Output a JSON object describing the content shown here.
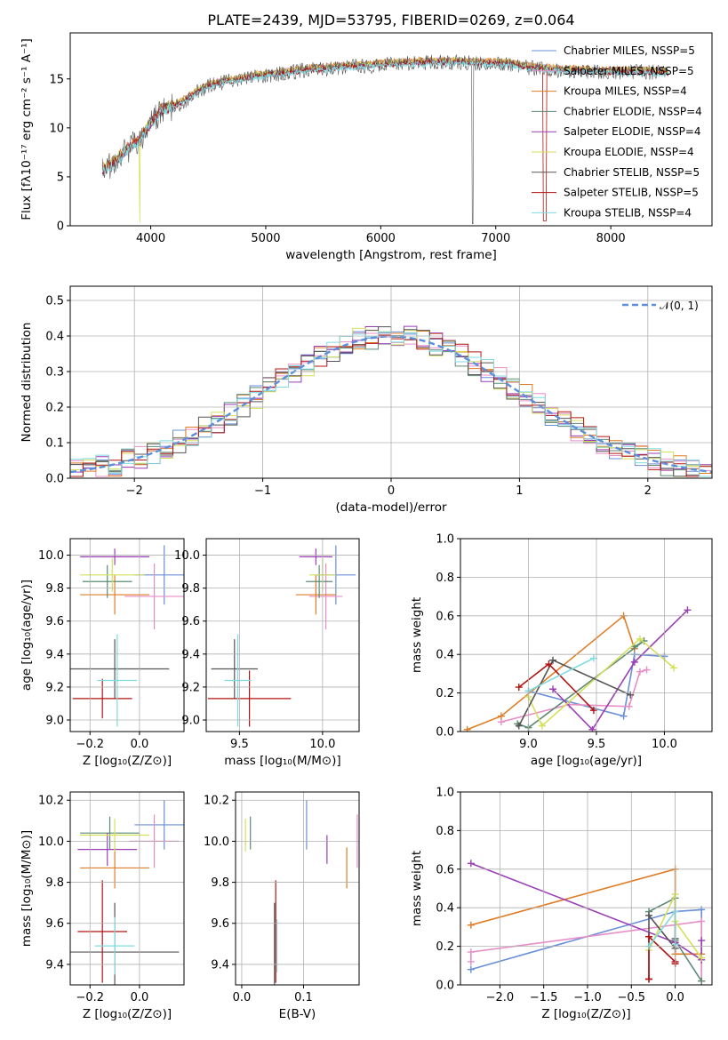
{
  "page_title": "PLATE=2439, MJD=53795, FIBERID=0269, z=0.064",
  "colors": {
    "series": [
      "#6a8fd9",
      "#e88ec6",
      "#e07c25",
      "#5e8a74",
      "#9b3fb5",
      "#d4e05a",
      "#555555",
      "#b01414",
      "#7fdbe0"
    ]
  },
  "chart_data": [
    {
      "id": "spectrum",
      "type": "line",
      "xlabel": "wavelength [Angstrom, rest frame]",
      "ylabel": "Flux [fλ10⁻¹⁷ erg cm⁻² s⁻¹ A⁻¹]",
      "xlim": [
        3300,
        8880
      ],
      "ylim": [
        0,
        19.7
      ],
      "xticks": [
        "4000",
        "5000",
        "6000",
        "7000",
        "8000"
      ],
      "yticks": [
        "0",
        "5",
        "10",
        "15"
      ],
      "grid": false,
      "legend": "top-right",
      "x": [
        3580,
        3700,
        3800,
        3900,
        4000,
        4100,
        4200,
        4300,
        4500,
        4700,
        4900,
        5100,
        5300,
        5500,
        5700,
        5900,
        6100,
        6300,
        6500,
        6700,
        6900,
        7100,
        7300,
        7500,
        7700,
        7900,
        8100,
        8300,
        8500
      ],
      "series": [
        {
          "name": "Chabrier MILES, NSSP=5",
          "values": [
            5.8,
            6.8,
            8.0,
            8.9,
            10.6,
            12.0,
            12.3,
            13.0,
            14.5,
            15.0,
            15.4,
            15.7,
            16.0,
            16.2,
            16.4,
            16.5,
            16.7,
            16.8,
            16.9,
            16.9,
            16.8,
            16.7,
            16.3,
            16.1,
            16.0,
            15.9,
            15.9,
            15.9,
            15.8
          ]
        },
        {
          "name": "Salpeter MILES, NSSP=5",
          "values": [
            5.8,
            6.7,
            7.9,
            8.9,
            10.5,
            12.0,
            12.3,
            13.0,
            14.5,
            15.0,
            15.4,
            15.7,
            16.0,
            16.2,
            16.4,
            16.5,
            16.7,
            16.8,
            16.9,
            16.9,
            16.8,
            16.7,
            16.3,
            16.1,
            16.0,
            15.9,
            15.9,
            15.9,
            15.8
          ]
        },
        {
          "name": "Kroupa MILES, NSSP=4",
          "values": [
            5.9,
            6.8,
            8.1,
            9.0,
            10.6,
            12.1,
            12.4,
            13.1,
            14.6,
            15.1,
            15.5,
            15.8,
            16.1,
            16.3,
            16.5,
            16.6,
            16.8,
            16.9,
            17.0,
            17.0,
            16.9,
            16.8,
            16.4,
            16.2,
            16.1,
            16.0,
            16.0,
            16.0,
            15.9
          ]
        },
        {
          "name": "Chabrier ELODIE, NSSP=4",
          "values": [
            5.7,
            6.7,
            7.9,
            8.8,
            10.5,
            11.9,
            12.2,
            12.9,
            14.4,
            14.9,
            15.3,
            15.6,
            15.9,
            16.1,
            16.3,
            16.4,
            16.6,
            16.7,
            16.8,
            16.8,
            16.7,
            16.6,
            16.2,
            16.0,
            15.9,
            15.8,
            15.8,
            15.8,
            15.7
          ]
        },
        {
          "name": "Salpeter ELODIE, NSSP=4",
          "values": [
            5.7,
            6.6,
            7.9,
            8.8,
            10.4,
            11.9,
            12.2,
            12.9,
            14.4,
            14.9,
            15.3,
            15.6,
            15.9,
            16.1,
            16.3,
            16.4,
            16.6,
            16.7,
            16.8,
            16.8,
            16.7,
            16.6,
            16.2,
            16.0,
            15.9,
            15.8,
            15.8,
            15.8,
            15.7
          ]
        },
        {
          "name": "Kroupa ELODIE, NSSP=4",
          "values": [
            5.8,
            6.8,
            8.0,
            8.9,
            10.6,
            12.0,
            12.3,
            13.0,
            14.5,
            15.0,
            15.4,
            15.7,
            16.0,
            16.2,
            16.4,
            16.5,
            16.7,
            16.8,
            16.9,
            16.9,
            16.8,
            16.7,
            16.3,
            16.1,
            16.0,
            15.9,
            15.9,
            15.9,
            15.8
          ]
        },
        {
          "name": "Chabrier STELIB, NSSP=5",
          "values": [
            5.6,
            6.6,
            7.8,
            8.7,
            10.4,
            11.8,
            12.1,
            12.8,
            14.3,
            14.8,
            15.2,
            15.5,
            15.8,
            16.0,
            16.2,
            16.3,
            16.5,
            16.6,
            16.7,
            16.7,
            16.6,
            16.5,
            16.1,
            15.9,
            15.8,
            15.7,
            15.7,
            15.7,
            15.6
          ]
        },
        {
          "name": "Salpeter STELIB, NSSP=5",
          "values": [
            5.6,
            6.6,
            7.8,
            8.7,
            10.4,
            11.8,
            12.1,
            12.8,
            14.3,
            14.8,
            15.2,
            15.5,
            15.8,
            16.0,
            16.2,
            16.3,
            16.5,
            16.6,
            16.7,
            16.7,
            16.6,
            16.5,
            16.1,
            15.9,
            15.8,
            15.7,
            15.7,
            15.7,
            15.6
          ]
        },
        {
          "name": "Kroupa STELIB, NSSP=4",
          "values": [
            5.5,
            6.5,
            7.7,
            8.6,
            10.3,
            11.7,
            12.0,
            12.7,
            14.2,
            14.7,
            15.1,
            15.4,
            15.7,
            15.9,
            16.1,
            16.2,
            16.4,
            16.5,
            16.6,
            16.6,
            16.5,
            16.4,
            16.0,
            15.8,
            15.7,
            15.6,
            15.6,
            15.6,
            15.5
          ]
        }
      ]
    },
    {
      "id": "residuals",
      "type": "histogram",
      "xlabel": "(data-model)/error",
      "ylabel": "Normed distribution",
      "xlim": [
        -2.5,
        2.5
      ],
      "ylim": [
        0,
        0.54
      ],
      "xticks": [
        "−2",
        "−1",
        "0",
        "1",
        "2"
      ],
      "yticks": [
        "0.0",
        "0.1",
        "0.2",
        "0.3",
        "0.4",
        "0.5"
      ],
      "grid": true,
      "legend": "top-right",
      "gaussian_label": "𝒩(0, 1)",
      "bin_edges_range": [
        -2.5,
        2.5
      ],
      "n_bins": 50,
      "shape": "normal"
    },
    {
      "id": "age_vs_Z",
      "type": "errorbar",
      "xlabel": "Z [log₁₀(Z/Z⊙)]",
      "ylabel": "age  [log₁₀(age/yr)]",
      "xlim": [
        -0.28,
        0.18
      ],
      "ylim": [
        8.93,
        10.1
      ],
      "xticks": [
        "−0.2",
        "0.0"
      ],
      "yticks": [
        "9.0",
        "9.2",
        "9.4",
        "9.6",
        "9.8",
        "10.0"
      ],
      "grid": true,
      "points": [
        {
          "x": 0.1,
          "y": 9.88,
          "xerr": 0.12,
          "yerr": 0.18
        },
        {
          "x": 0.06,
          "y": 9.75,
          "xerr": 0.12,
          "yerr": 0.2
        },
        {
          "x": -0.1,
          "y": 9.76,
          "xerr": 0.14,
          "yerr": 0.12
        },
        {
          "x": -0.13,
          "y": 9.84,
          "xerr": 0.1,
          "yerr": 0.1
        },
        {
          "x": -0.1,
          "y": 9.99,
          "xerr": 0.14,
          "yerr": 0.05
        },
        {
          "x": -0.11,
          "y": 9.88,
          "xerr": 0.13,
          "yerr": 0.1
        },
        {
          "x": -0.1,
          "y": 9.31,
          "xerr": 0.22,
          "yerr": 0.18
        },
        {
          "x": -0.15,
          "y": 9.13,
          "xerr": 0.12,
          "yerr": 0.12
        },
        {
          "x": -0.09,
          "y": 9.24,
          "xerr": 0.08,
          "yerr": 0.28
        }
      ]
    },
    {
      "id": "age_vs_mass",
      "type": "errorbar",
      "xlabel": "mass [log₁₀(M/M⊙)]",
      "ylabel": "",
      "xlim": [
        9.3,
        10.22
      ],
      "ylim": [
        8.93,
        10.1
      ],
      "xticks": [
        "9.5",
        "10.0"
      ],
      "yticks": [
        "9.0",
        "9.2",
        "9.4",
        "9.6",
        "9.8",
        "10.0"
      ],
      "grid": true,
      "points": [
        {
          "x": 10.08,
          "y": 9.88,
          "xerr": 0.12,
          "yerr": 0.18
        },
        {
          "x": 10.02,
          "y": 9.75,
          "xerr": 0.1,
          "yerr": 0.2
        },
        {
          "x": 9.96,
          "y": 9.76,
          "xerr": 0.12,
          "yerr": 0.12
        },
        {
          "x": 9.98,
          "y": 9.84,
          "xerr": 0.08,
          "yerr": 0.1
        },
        {
          "x": 9.96,
          "y": 9.99,
          "xerr": 0.1,
          "yerr": 0.05
        },
        {
          "x": 10.0,
          "y": 9.88,
          "xerr": 0.08,
          "yerr": 0.1
        },
        {
          "x": 9.47,
          "y": 9.31,
          "xerr": 0.14,
          "yerr": 0.18
        },
        {
          "x": 9.56,
          "y": 9.13,
          "xerr": 0.25,
          "yerr": 0.17
        },
        {
          "x": 9.49,
          "y": 9.24,
          "xerr": 0.08,
          "yerr": 0.28
        }
      ]
    },
    {
      "id": "massweight_vs_age",
      "type": "line",
      "xlabel": "age  [log₁₀(age/yr)]",
      "ylabel": "mass weight",
      "xlim": [
        8.5,
        10.35
      ],
      "ylim": [
        0,
        1.0
      ],
      "xticks": [
        "9.0",
        "9.5",
        "10.0"
      ],
      "yticks": [
        "0.0",
        "0.2",
        "0.4",
        "0.6",
        "0.8",
        "1.0"
      ],
      "grid": true,
      "series": [
        {
          "x": [
            9.0,
            9.7,
            9.78,
            10.0
          ],
          "values": [
            0.21,
            0.08,
            0.4,
            0.39
          ]
        },
        {
          "x": [
            8.8,
            9.3,
            9.74,
            9.82,
            9.87
          ],
          "values": [
            0.05,
            0.14,
            0.13,
            0.31,
            0.32
          ]
        },
        {
          "x": [
            8.55,
            8.8,
            9.7,
            9.78
          ],
          "values": [
            0.01,
            0.08,
            0.6,
            0.43
          ]
        },
        {
          "x": [
            8.92,
            9.0,
            9.85,
            9.78
          ],
          "values": [
            0.04,
            0.02,
            0.47,
            0.44
          ]
        },
        {
          "x": [
            9.18,
            9.47,
            9.78,
            10.17
          ],
          "values": [
            0.22,
            0.01,
            0.36,
            0.63
          ]
        },
        {
          "x": [
            9.0,
            9.1,
            9.82,
            10.07
          ],
          "values": [
            0.18,
            0.03,
            0.48,
            0.33
          ]
        },
        {
          "x": [
            8.93,
            9.18,
            9.75
          ],
          "values": [
            0.03,
            0.37,
            0.19
          ]
        },
        {
          "x": [
            8.93,
            9.15,
            9.48
          ],
          "values": [
            0.23,
            0.35,
            0.11
          ]
        },
        {
          "x": [
            9.0,
            9.48
          ],
          "values": [
            0.21,
            0.38
          ]
        }
      ]
    },
    {
      "id": "mass_vs_Z",
      "type": "errorbar",
      "xlabel": "Z [log₁₀(Z/Z⊙)]",
      "ylabel": "mass [log₁₀(M/M⊙)]",
      "xlim": [
        -0.28,
        0.18
      ],
      "ylim": [
        9.3,
        10.24
      ],
      "xticks": [
        "−0.2",
        "0.0"
      ],
      "yticks": [
        "9.4",
        "9.6",
        "9.8",
        "10.0",
        "10.2"
      ],
      "grid": true,
      "points": [
        {
          "x": 0.1,
          "y": 10.08,
          "xerr": 0.12,
          "yerr": 0.12
        },
        {
          "x": 0.06,
          "y": 10.0,
          "xerr": 0.1,
          "yerr": 0.13
        },
        {
          "x": -0.1,
          "y": 9.87,
          "xerr": 0.14,
          "yerr": 0.1
        },
        {
          "x": -0.12,
          "y": 10.04,
          "xerr": 0.12,
          "yerr": 0.08
        },
        {
          "x": -0.13,
          "y": 9.96,
          "xerr": 0.12,
          "yerr": 0.08
        },
        {
          "x": -0.1,
          "y": 10.03,
          "xerr": 0.14,
          "yerr": 0.08
        },
        {
          "x": -0.1,
          "y": 9.46,
          "xerr": 0.26,
          "yerr": 0.24
        },
        {
          "x": -0.15,
          "y": 9.56,
          "xerr": 0.1,
          "yerr": 0.25
        },
        {
          "x": -0.1,
          "y": 9.49,
          "xerr": 0.08,
          "yerr": 0.14
        }
      ]
    },
    {
      "id": "mass_vs_ebv",
      "type": "errorbar",
      "xlabel": "E(B-V)",
      "ylabel": "",
      "xlim": [
        -0.01,
        0.19
      ],
      "ylim": [
        9.3,
        10.24
      ],
      "xticks": [
        "0.0",
        "0.1"
      ],
      "yticks": [
        "9.4",
        "9.6",
        "9.8",
        "10.0",
        "10.2"
      ],
      "grid": true,
      "points": [
        {
          "x": 0.105,
          "y": 10.08,
          "xerr": 0,
          "yerr": 0.12
        },
        {
          "x": 0.187,
          "y": 10.0,
          "xerr": 0,
          "yerr": 0.13
        },
        {
          "x": 0.17,
          "y": 9.87,
          "xerr": 0,
          "yerr": 0.1
        },
        {
          "x": 0.014,
          "y": 10.04,
          "xerr": 0,
          "yerr": 0.08
        },
        {
          "x": 0.138,
          "y": 9.96,
          "xerr": 0,
          "yerr": 0.07
        },
        {
          "x": 0.006,
          "y": 10.03,
          "xerr": 0,
          "yerr": 0.08
        },
        {
          "x": 0.053,
          "y": 9.46,
          "xerr": 0,
          "yerr": 0.24
        },
        {
          "x": 0.055,
          "y": 9.56,
          "xerr": 0,
          "yerr": 0.25
        },
        {
          "x": 0.057,
          "y": 9.49,
          "xerr": 0,
          "yerr": 0.13
        }
      ]
    },
    {
      "id": "massweight_vs_Z",
      "type": "line",
      "xlabel": "Z [log₁₀(Z/Z⊙)]",
      "ylabel": "mass weight",
      "xlim": [
        -2.45,
        0.42
      ],
      "ylim": [
        0,
        1.0
      ],
      "xticks": [
        "−2.0",
        "−1.5",
        "−1.0",
        "−0.5",
        "0.0"
      ],
      "yticks": [
        "0.0",
        "0.2",
        "0.4",
        "0.6",
        "0.8",
        "1.0"
      ],
      "grid": true,
      "series": [
        {
          "x": [
            -2.33,
            0.0,
            0.3,
            0.3
          ],
          "values": [
            0.08,
            0.38,
            0.39,
            0.02
          ]
        },
        {
          "x": [
            -2.33,
            -2.33,
            0.3,
            0.3
          ],
          "values": [
            0.12,
            0.17,
            0.33,
            0.02
          ]
        },
        {
          "x": [
            -2.33,
            0.0,
            0.0,
            0.3
          ],
          "values": [
            0.31,
            0.6,
            0.16,
            0.16
          ]
        },
        {
          "x": [
            -0.3,
            0.0,
            0.0,
            0.3
          ],
          "values": [
            0.38,
            0.45,
            0.23,
            0.02
          ]
        },
        {
          "x": [
            -2.33,
            0.0,
            0.3,
            0.3
          ],
          "values": [
            0.63,
            0.22,
            0.13,
            0.23
          ]
        },
        {
          "x": [
            -0.3,
            0.0,
            0.0,
            0.3
          ],
          "values": [
            0.18,
            0.47,
            0.33,
            0.14
          ]
        },
        {
          "x": [
            -0.3,
            -0.3,
            0.0,
            0.0
          ],
          "values": [
            0.03,
            0.36,
            0.19,
            0.24
          ]
        },
        {
          "x": [
            -0.3,
            -0.3,
            0.0,
            0.0
          ],
          "values": [
            0.03,
            0.25,
            0.12,
            0.11
          ]
        },
        {
          "x": [
            -0.3,
            0.0,
            0.0
          ],
          "values": [
            0.2,
            0.38,
            0.21
          ]
        }
      ]
    }
  ]
}
